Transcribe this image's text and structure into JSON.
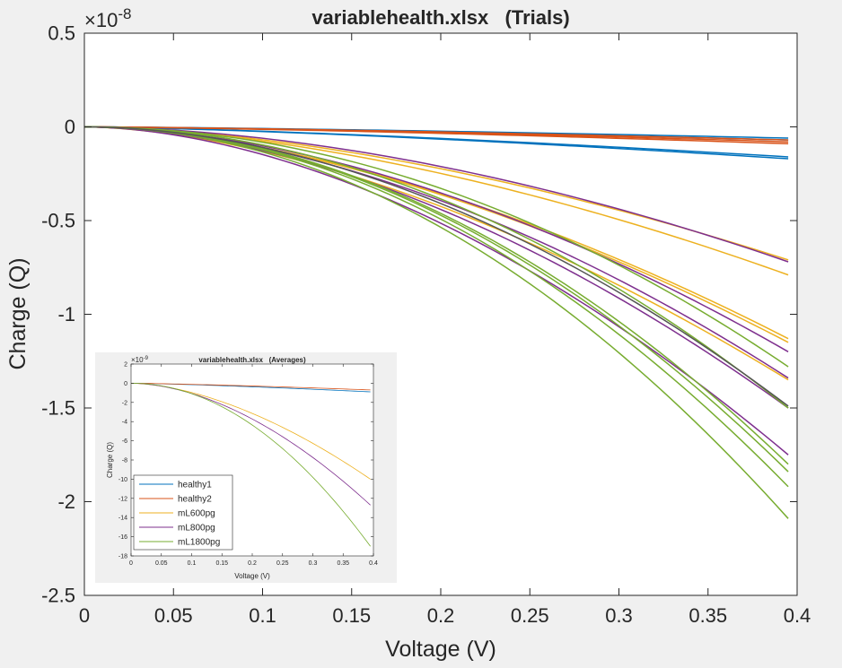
{
  "chart_data": [
    {
      "type": "line",
      "title": "variablehealth.xlsx   (Trials)",
      "xlabel": "Voltage (V)",
      "ylabel": "Charge (Q)",
      "exponent_prefix": "×10",
      "exponent": "-8",
      "xlim": [
        0,
        0.4
      ],
      "ylim": [
        -2.5,
        0.5
      ],
      "x_ticks": [
        0,
        0.05,
        0.1,
        0.15,
        0.2,
        0.25,
        0.3,
        0.35,
        0.4
      ],
      "x_tick_labels": [
        "0",
        "0.05",
        "0.1",
        "0.15",
        "0.2",
        "0.25",
        "0.3",
        "0.35",
        "0.4"
      ],
      "y_ticks": [
        0.5,
        0,
        -0.5,
        -1,
        -1.5,
        -2,
        -2.5
      ],
      "y_tick_labels": [
        "0.5",
        "0",
        "-0.5",
        "-1",
        "-1.5",
        "-2",
        "-2.5"
      ],
      "grid": false,
      "x_end": 0.395,
      "series": [
        {
          "group": "healthy1",
          "color": "#0072BD",
          "end_values": [
            -0.06,
            -0.07,
            -0.16,
            -0.17
          ],
          "shape": 1.4
        },
        {
          "group": "healthy2",
          "color": "#D95319",
          "end_values": [
            -0.07,
            -0.08,
            -0.09
          ],
          "shape": 1.4
        },
        {
          "group": "mL600pg",
          "color": "#EDB120",
          "end_values": [
            -0.71,
            -0.79,
            -1.13,
            -1.15,
            -1.35
          ],
          "shape": 1.7
        },
        {
          "group": "mL800pg",
          "color": "#7E2F8E",
          "end_values": [
            -0.72,
            -1.2,
            -1.34,
            -1.5,
            -1.75
          ],
          "shape": 1.8
        },
        {
          "group": "mL1800pg",
          "color": "#77AC30",
          "end_values": [
            -1.28,
            -1.5,
            -1.8,
            -1.84,
            -1.92,
            -2.09
          ],
          "shape": 2.0
        },
        {
          "group": "dark",
          "color": "#555555",
          "end_values": [
            -1.49
          ],
          "shape": 1.9
        }
      ]
    },
    {
      "type": "line",
      "title": "variablehealth.xlsx   (Averages)",
      "xlabel": "Voltage (V)",
      "ylabel": "Charge (Q)",
      "exponent_prefix": "×10",
      "exponent": "-9",
      "xlim": [
        0,
        0.4
      ],
      "ylim": [
        -18,
        2
      ],
      "x_ticks": [
        0,
        0.05,
        0.1,
        0.15,
        0.2,
        0.25,
        0.3,
        0.35,
        0.4
      ],
      "x_tick_labels": [
        "0",
        "0.05",
        "0.1",
        "0.15",
        "0.2",
        "0.25",
        "0.3",
        "0.35",
        "0.4"
      ],
      "y_ticks": [
        2,
        0,
        -2,
        -4,
        -6,
        -8,
        -10,
        -12,
        -14,
        -16,
        -18
      ],
      "y_tick_labels": [
        "2",
        "0",
        "-2",
        "-4",
        "-6",
        "-8",
        "-10",
        "-12",
        "-14",
        "-16",
        "-18"
      ],
      "grid": false,
      "legend_position": "bottom-left",
      "x_end": 0.395,
      "series": [
        {
          "name": "healthy1",
          "color": "#0072BD",
          "end_value": -0.9,
          "shape": 1.3
        },
        {
          "name": "healthy2",
          "color": "#D95319",
          "end_value": -0.7,
          "shape": 1.3
        },
        {
          "name": "mL600pg",
          "color": "#EDB120",
          "end_value": -10.0,
          "shape": 1.7
        },
        {
          "name": "mL800pg",
          "color": "#7E2F8E",
          "end_value": -12.7,
          "shape": 1.8
        },
        {
          "name": "mL1800pg",
          "color": "#77AC30",
          "end_value": -17.0,
          "shape": 2.0
        }
      ]
    }
  ]
}
